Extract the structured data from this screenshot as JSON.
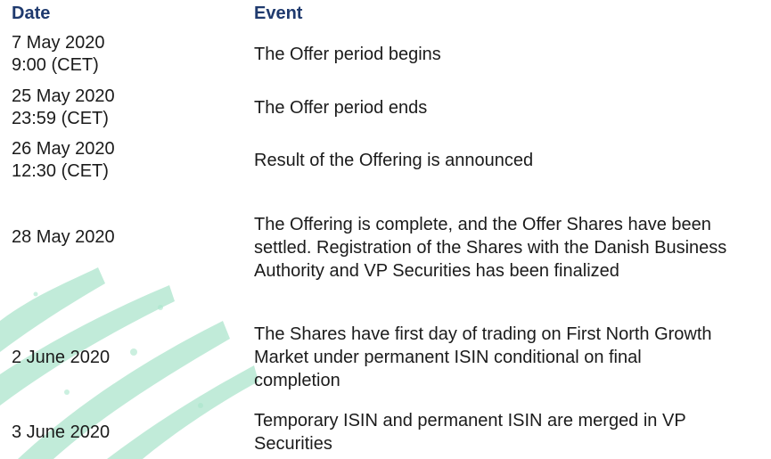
{
  "table": {
    "headers": {
      "date": "Date",
      "event": "Event"
    },
    "rows": [
      {
        "date_lines": [
          "7 May 2020",
          "9:00 (CET)"
        ],
        "event_lines": [
          "The Offer period begins"
        ]
      },
      {
        "date_lines": [
          "25 May 2020",
          "23:59 (CET)"
        ],
        "event_lines": [
          "The Offer period ends"
        ]
      },
      {
        "date_lines": [
          "26 May 2020",
          "12:30 (CET)"
        ],
        "event_lines": [
          "Result of the Offering is announced"
        ]
      },
      {
        "date_lines": [
          "28 May 2020"
        ],
        "event_lines": [
          "The Offering is complete, and the Offer Shares have been",
          "settled. Registration of the Shares with the Danish Business",
          "Authority and VP Securities has been finalized"
        ]
      },
      {
        "date_lines": [
          "2 June 2020"
        ],
        "event_lines": [
          "The Shares have first day of trading on First North Growth",
          "Market under permanent ISIN conditional on final",
          "completion"
        ]
      },
      {
        "date_lines": [
          "3 June 2020"
        ],
        "event_lines": [
          "Temporary ISIN and permanent ISIN are merged in VP",
          "Securities"
        ]
      }
    ]
  },
  "colors": {
    "header": "#1f3a6e",
    "text": "#1b1b1b",
    "decoration": "#7fd3b0"
  }
}
